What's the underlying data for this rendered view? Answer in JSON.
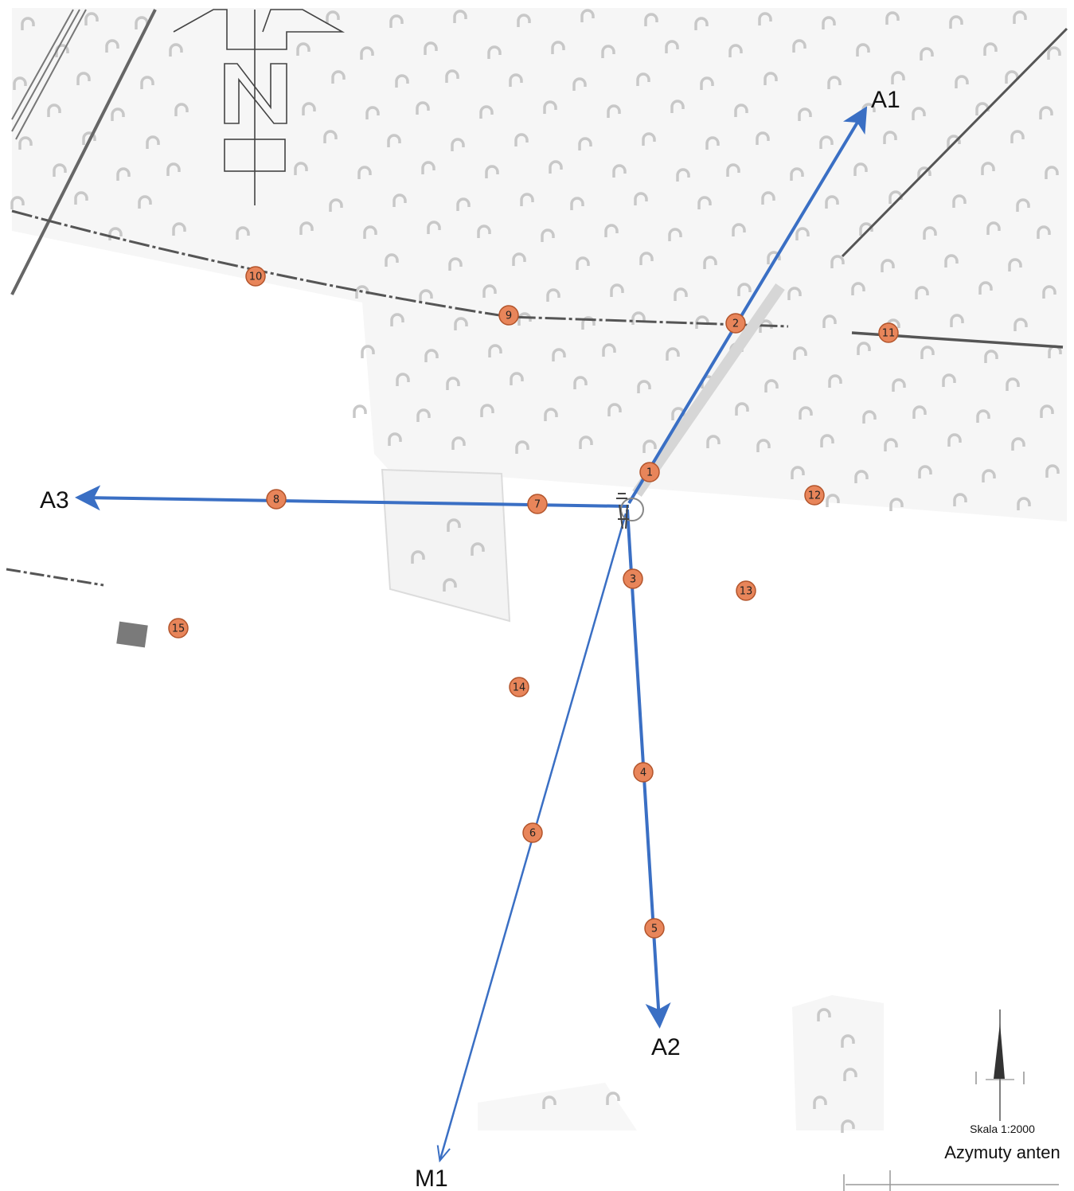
{
  "azimuth_labels": {
    "a1": "A1",
    "a2": "A2",
    "a3": "A3",
    "m1": "M1"
  },
  "markers": [
    "1",
    "2",
    "3",
    "4",
    "5",
    "6",
    "7",
    "8",
    "9",
    "10",
    "11",
    "12",
    "13",
    "14",
    "15"
  ],
  "legend": {
    "scale": "Skala 1:2000",
    "title": "Azymuty anten"
  },
  "colors": {
    "azimuth_line": "#3a6fc4",
    "marker_fill": "#e8855a",
    "marker_stroke": "#b3552c",
    "forest_symbol": "#c8c8c8",
    "road": "#555555"
  },
  "icons": {
    "north_arrow": "north-arrow-icon",
    "antenna_site": "antenna-mast-icon",
    "building": "building-icon"
  }
}
